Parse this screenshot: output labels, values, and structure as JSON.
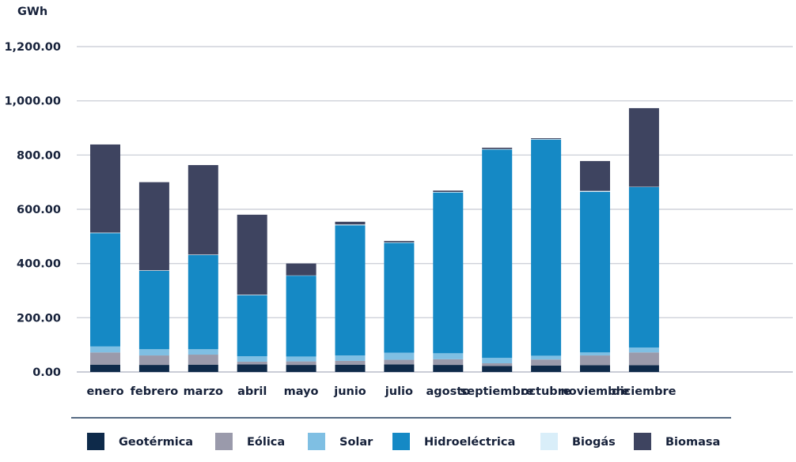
{
  "chart_data": {
    "type": "bar",
    "stacked": true,
    "ylabel": "GWh",
    "ylim": [
      0,
      1200
    ],
    "yticks": [
      "0.00",
      "200.00",
      "400.00",
      "600.00",
      "800.00",
      "1,000.00",
      "1,200.00"
    ],
    "grid": true,
    "legend_position": "bottom",
    "categories": [
      "enero",
      "febrero",
      "marzo",
      "abril",
      "mayo",
      "junio",
      "julio",
      "agosto",
      "septiembre",
      "octubre",
      "noviembre",
      "diciembre"
    ],
    "series": [
      {
        "name": "Geotérmica",
        "color": "#0e2a4a",
        "values": [
          27,
          26,
          27,
          28,
          26,
          27,
          28,
          26,
          22,
          24,
          25,
          25
        ]
      },
      {
        "name": "Eólica",
        "color": "#9a9aab",
        "values": [
          45,
          35,
          37,
          10,
          13,
          14,
          17,
          21,
          10,
          22,
          36,
          47
        ]
      },
      {
        "name": "Solar",
        "color": "#7fbfe3",
        "values": [
          22,
          23,
          20,
          20,
          18,
          20,
          26,
          22,
          20,
          14,
          11,
          18
        ]
      },
      {
        "name": "Hidroeléctrica",
        "color": "#1589c5",
        "values": [
          418,
          289,
          347,
          225,
          298,
          480,
          405,
          593,
          768,
          797,
          592,
          592
        ]
      },
      {
        "name": "Biogás",
        "color": "#d9eef9",
        "values": [
          2,
          2,
          2,
          2,
          1,
          3,
          2,
          2,
          2,
          2,
          4,
          1
        ]
      },
      {
        "name": "Biomasa",
        "color": "#3e4460",
        "values": [
          325,
          325,
          330,
          295,
          44,
          10,
          5,
          5,
          5,
          3,
          110,
          290
        ]
      }
    ]
  }
}
